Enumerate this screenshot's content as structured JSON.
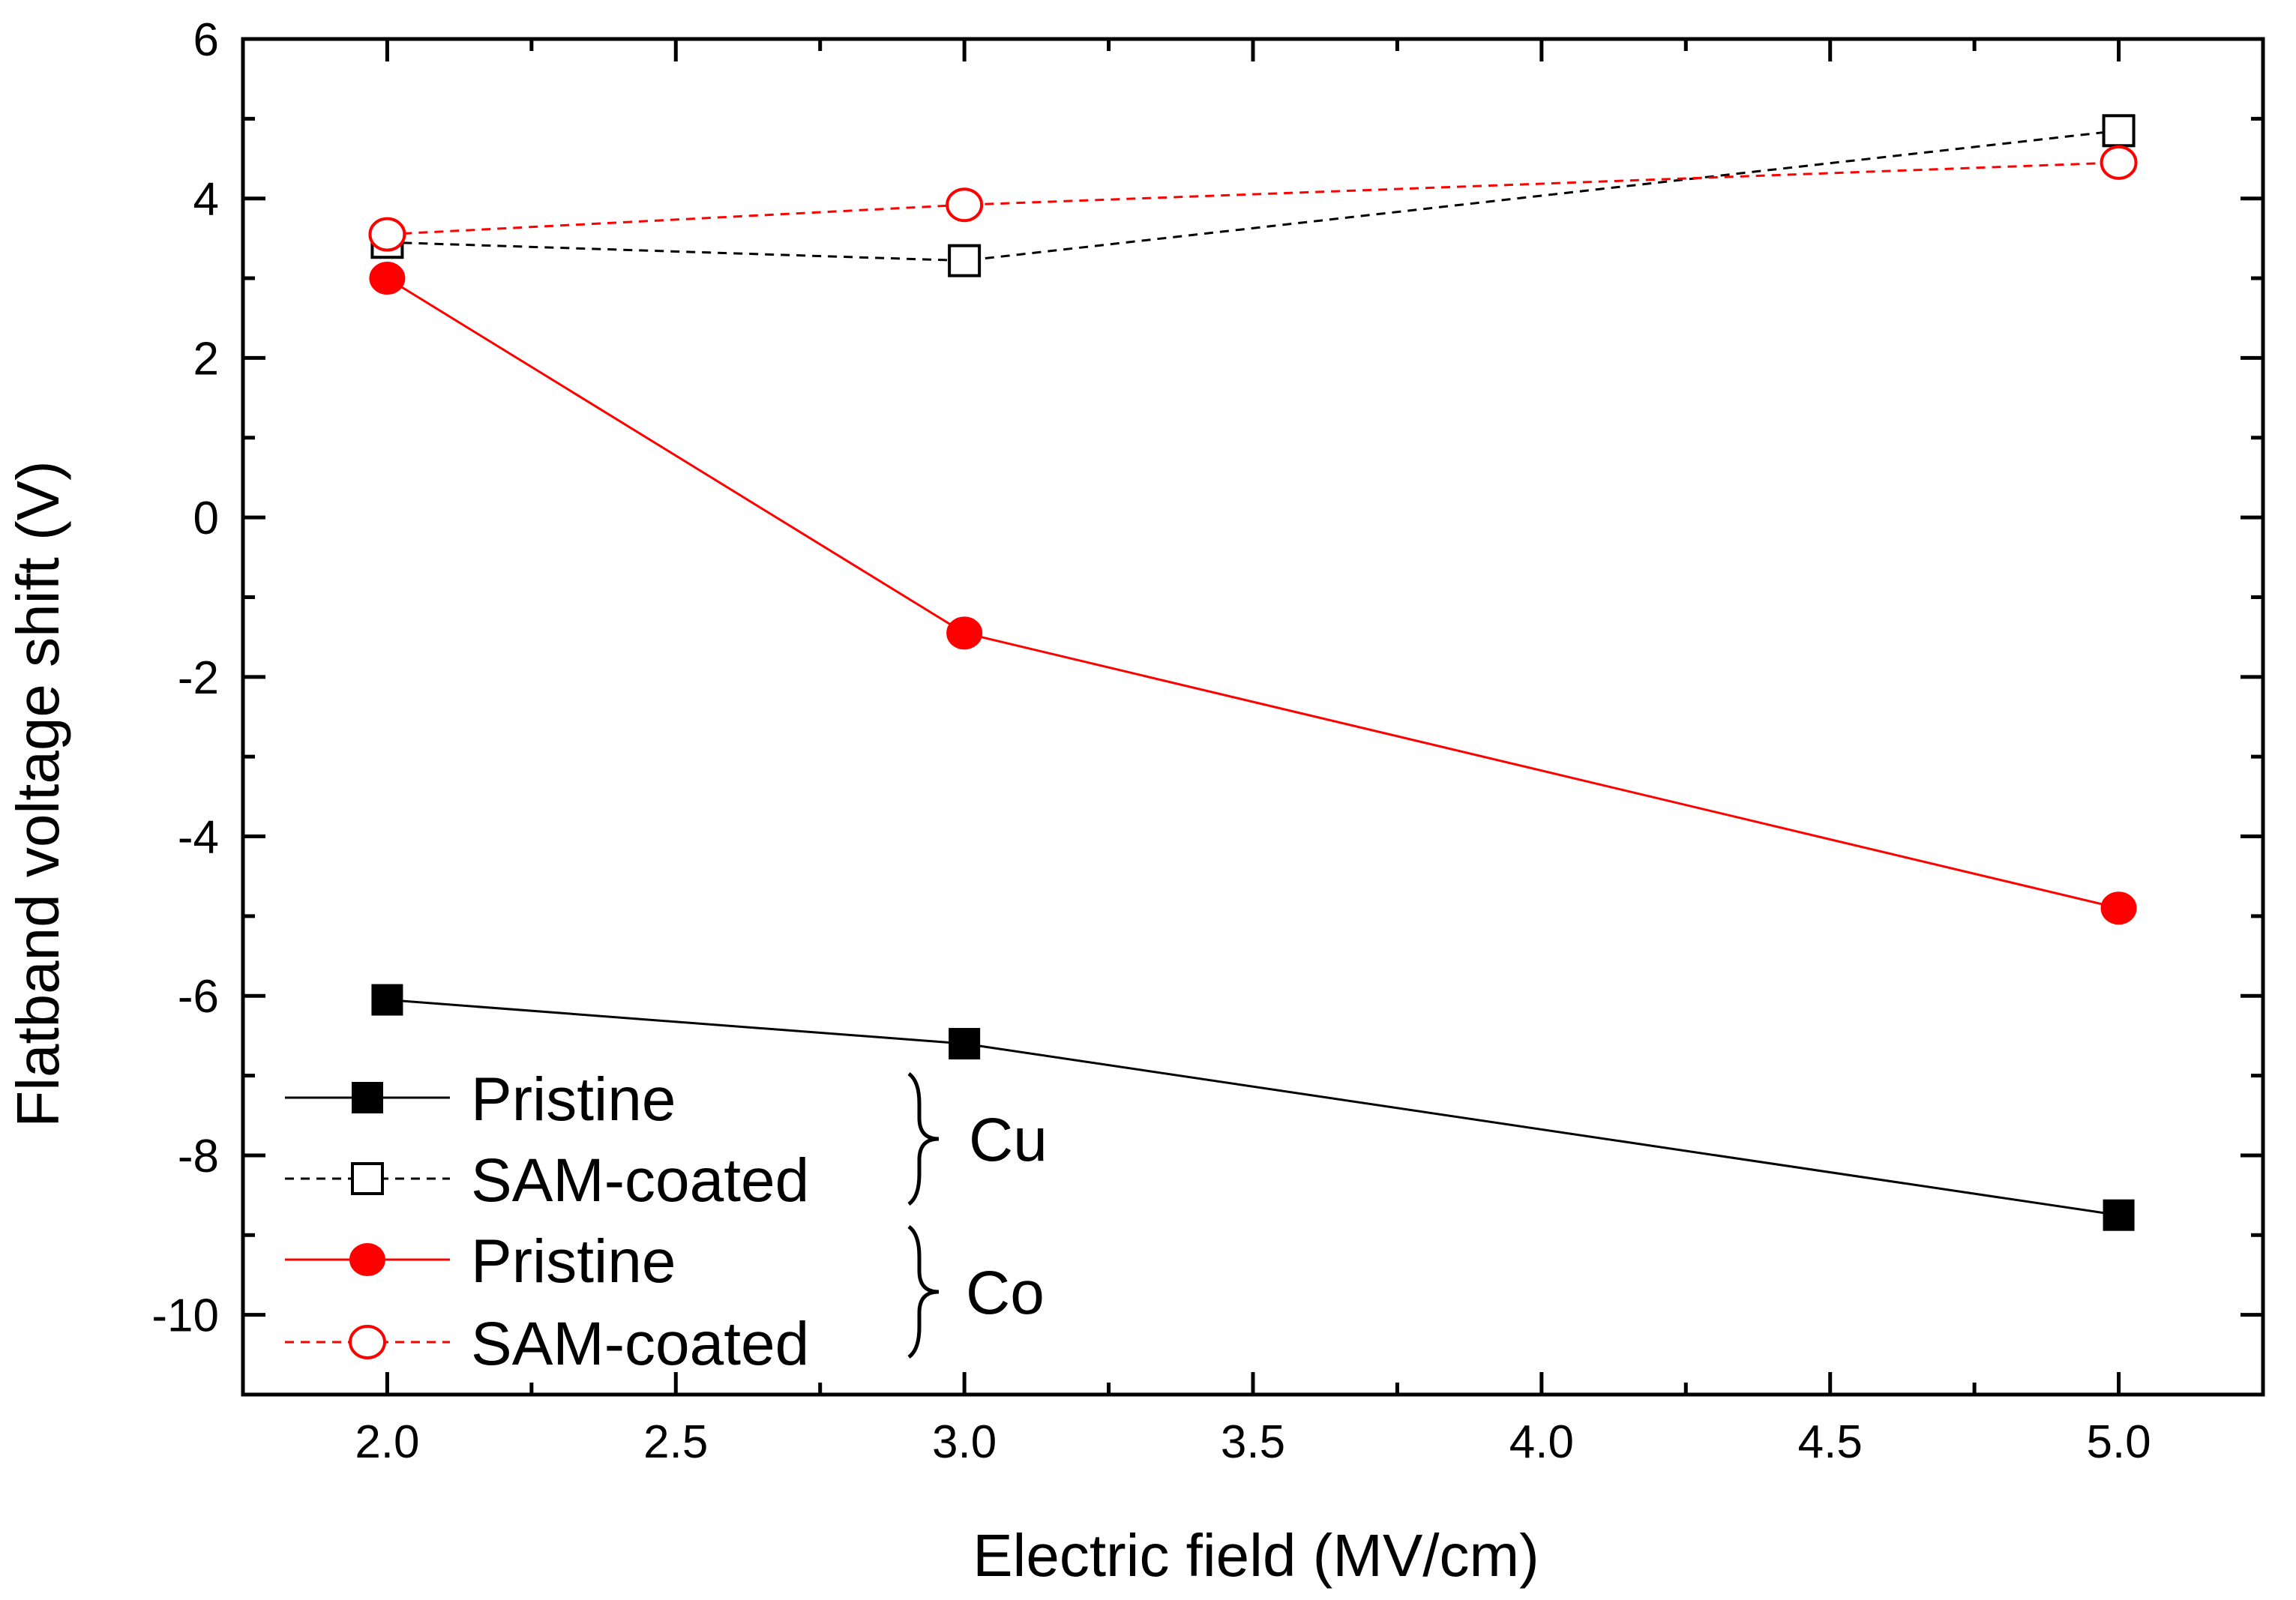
{
  "chart_data": {
    "type": "line",
    "title": "",
    "xlabel": "Electric field (MV/cm)",
    "ylabel": "Flatband voltage shift (V)",
    "xlim": [
      1.75,
      5.25
    ],
    "ylim": [
      -11,
      6
    ],
    "xticks": [
      2.0,
      2.5,
      3.0,
      3.5,
      4.0,
      4.5,
      5.0
    ],
    "xtick_labels": [
      "2.0",
      "2.5",
      "3.0",
      "3.5",
      "4.0",
      "4.5",
      "5.0"
    ],
    "yticks": [
      -10,
      -8,
      -6,
      -4,
      -2,
      0,
      2,
      4,
      6
    ],
    "ytick_labels": [
      "-10",
      "-8",
      "-6",
      "-4",
      "-2",
      "0",
      "2",
      "4",
      "6"
    ],
    "grid": false,
    "legend_position": "bottom-left",
    "series": [
      {
        "name": "Pristine",
        "group": "Cu",
        "color": "#000000",
        "marker": "square-filled",
        "line": "solid",
        "x": [
          2.0,
          3.0,
          5.0
        ],
        "y": [
          -6.05,
          -6.6,
          -8.75
        ]
      },
      {
        "name": "SAM-coated",
        "group": "Cu",
        "color": "#000000",
        "marker": "square-open",
        "line": "dashed",
        "x": [
          2.0,
          3.0,
          5.0
        ],
        "y": [
          3.45,
          3.22,
          4.85
        ]
      },
      {
        "name": "Pristine",
        "group": "Co",
        "color": "#ff0000",
        "marker": "circle-filled",
        "line": "solid",
        "x": [
          2.0,
          3.0,
          5.0
        ],
        "y": [
          3.0,
          -1.45,
          -4.9
        ]
      },
      {
        "name": "SAM-coated",
        "group": "Co",
        "color": "#ff0000",
        "marker": "circle-open",
        "line": "dashed",
        "x": [
          2.0,
          3.0,
          5.0
        ],
        "y": [
          3.55,
          3.92,
          4.45
        ]
      }
    ],
    "group_labels": [
      "Cu",
      "Co"
    ]
  }
}
